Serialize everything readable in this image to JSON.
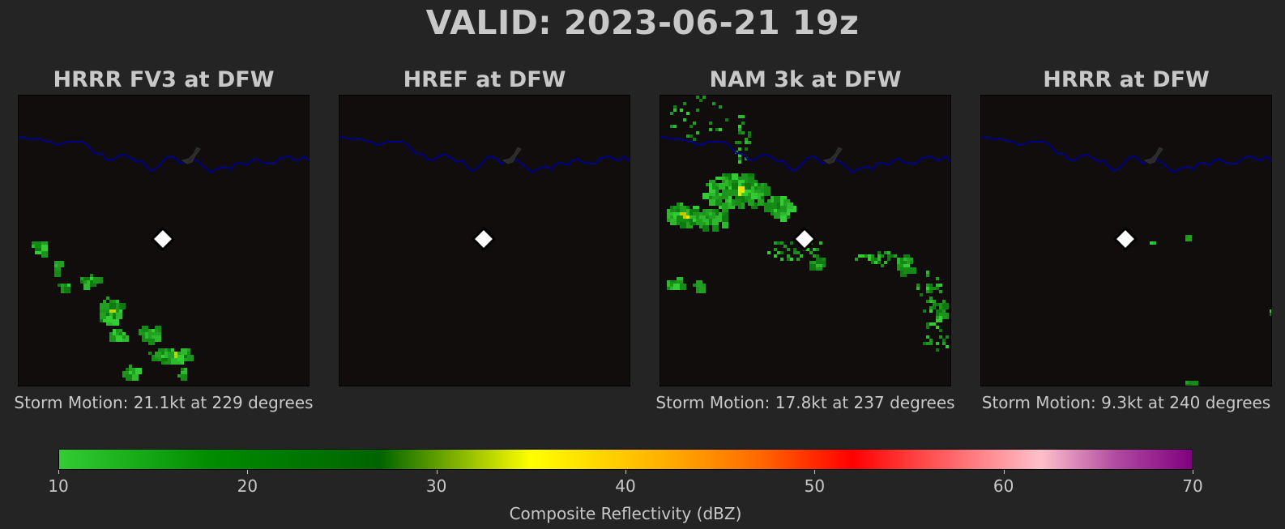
{
  "title": "VALID: 2023-06-21 19z",
  "colors": {
    "background": "#242424",
    "map_background": "#110d0d",
    "river": "#00008b",
    "marker": "#ffffff"
  },
  "chart_data": {
    "type": "heatmap",
    "panels": [
      {
        "title": "HRRR FV3 at DFW",
        "subtitle": "Storm Motion: 21.1kt at 229 degrees",
        "reflectivity_coverage": "moderate"
      },
      {
        "title": "HREF at DFW",
        "subtitle": "",
        "reflectivity_coverage": "none"
      },
      {
        "title": "NAM 3k at DFW",
        "subtitle": "Storm Motion: 17.8kt at 237 degrees",
        "reflectivity_coverage": "widespread"
      },
      {
        "title": "HRRR at DFW",
        "subtitle": "Storm Motion: 9.3kt at 240 degrees",
        "reflectivity_coverage": "sparse"
      }
    ],
    "colorbar": {
      "label": "Composite Reflectivity (dBZ)",
      "range": [
        10,
        70
      ],
      "ticks": [
        "10",
        "20",
        "30",
        "40",
        "50",
        "60",
        "70"
      ],
      "stops": [
        {
          "value": 10,
          "color": "#32cd32"
        },
        {
          "value": 18,
          "color": "#008c00"
        },
        {
          "value": 27,
          "color": "#006400"
        },
        {
          "value": 35,
          "color": "#ffff00"
        },
        {
          "value": 42,
          "color": "#ffb000"
        },
        {
          "value": 47,
          "color": "#ff6a00"
        },
        {
          "value": 52,
          "color": "#ff0000"
        },
        {
          "value": 55,
          "color": "#ff3a3a"
        },
        {
          "value": 62,
          "color": "#ffc0cb"
        },
        {
          "value": 66,
          "color": "#b04aa0"
        },
        {
          "value": 70,
          "color": "#800080"
        }
      ]
    }
  }
}
